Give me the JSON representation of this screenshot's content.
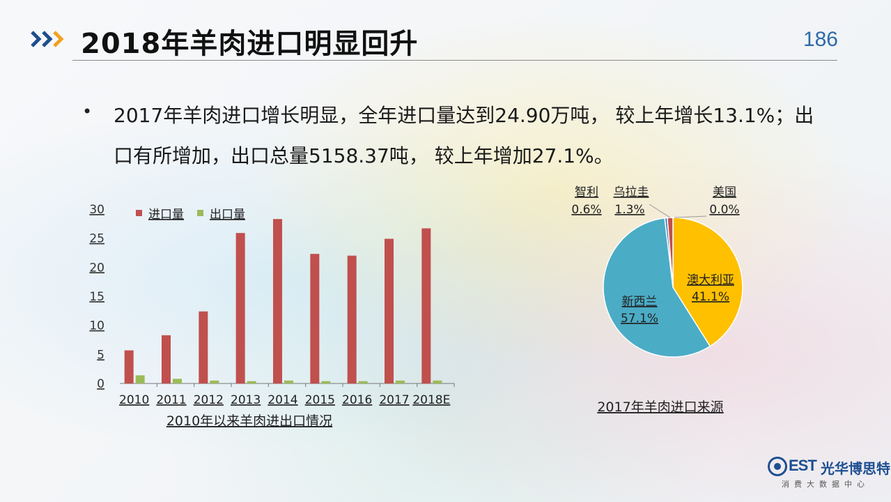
{
  "page": {
    "title": "2018年羊肉进口明显回升",
    "page_number": "186",
    "bullet": "2017年羊肉进口增长明显，全年进口量达到24.90万吨， 较上年增长13.1%；出口有所增加，出口总量5158.37吨， 较上年增加27.1%。"
  },
  "colors": {
    "import": "#C0504D",
    "export": "#9BBB59",
    "accent_blue": "#2f6aa9",
    "chevron_blue": "#1f4e8c",
    "chevron_orange": "#f4a11d",
    "pie_australia": "#FFC000",
    "pie_newzealand": "#4BACC6",
    "pie_chile": "#4F81BD",
    "pie_uruguay": "#C0504D",
    "pie_usa": "#9BBB59"
  },
  "bar_chart": {
    "type": "bar",
    "caption": "2010年以来羊肉进出口情况",
    "categories": [
      "2010",
      "2011",
      "2012",
      "2013",
      "2014",
      "2015",
      "2016",
      "2017",
      "2018E"
    ],
    "series": [
      {
        "name": "进口量",
        "values": [
          5.7,
          8.3,
          12.4,
          25.9,
          28.3,
          22.3,
          22.0,
          24.9,
          26.7
        ]
      },
      {
        "name": "出口量",
        "values": [
          1.4,
          0.8,
          0.5,
          0.4,
          0.5,
          0.4,
          0.4,
          0.5,
          0.5
        ]
      }
    ],
    "y_ticks": [
      "0",
      "5",
      "10",
      "15",
      "20",
      "25",
      "30"
    ],
    "ylim": [
      0,
      30
    ],
    "legend_position": "top-left"
  },
  "pie_chart": {
    "type": "pie",
    "caption": "2017年羊肉进口来源",
    "slices": [
      {
        "name": "澳大利亚",
        "value": 41.1,
        "label": "41.1%"
      },
      {
        "name": "新西兰",
        "value": 57.1,
        "label": "57.1%"
      },
      {
        "name": "智利",
        "value": 0.6,
        "label": "0.6%"
      },
      {
        "name": "乌拉圭",
        "value": 1.3,
        "label": "1.3%"
      },
      {
        "name": "美国",
        "value": 0.0,
        "label": "0.0%"
      }
    ]
  },
  "chart_data": [
    {
      "type": "bar",
      "title": "2010年以来羊肉进出口情况",
      "categories": [
        "2010",
        "2011",
        "2012",
        "2013",
        "2014",
        "2015",
        "2016",
        "2017",
        "2018E"
      ],
      "series": [
        {
          "name": "进口量",
          "values": [
            5.7,
            8.3,
            12.4,
            25.9,
            28.3,
            22.3,
            22.0,
            24.9,
            26.7
          ]
        },
        {
          "name": "出口量",
          "values": [
            1.4,
            0.8,
            0.5,
            0.4,
            0.5,
            0.4,
            0.4,
            0.5,
            0.5
          ]
        }
      ],
      "ylim": [
        0,
        30
      ],
      "grid": false,
      "legend": "top-left"
    },
    {
      "type": "pie",
      "title": "2017年羊肉进口来源",
      "categories": [
        "澳大利亚",
        "新西兰",
        "智利",
        "乌拉圭",
        "美国"
      ],
      "values": [
        41.1,
        57.1,
        0.6,
        1.3,
        0.0
      ]
    }
  ],
  "logo": {
    "mark": "BEST",
    "est": "EST",
    "name": "光华博思特",
    "sub": "消费大数据中心"
  }
}
